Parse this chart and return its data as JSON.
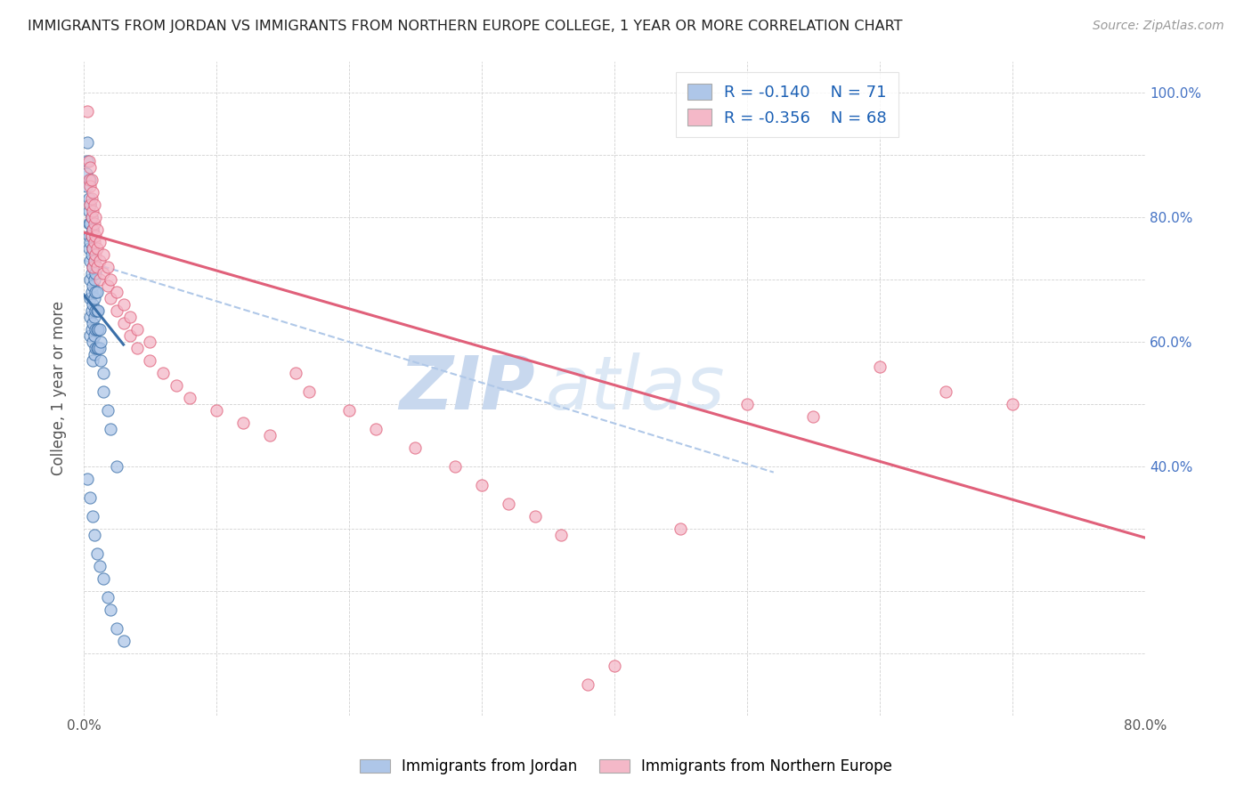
{
  "title": "IMMIGRANTS FROM JORDAN VS IMMIGRANTS FROM NORTHERN EUROPE COLLEGE, 1 YEAR OR MORE CORRELATION CHART",
  "source": "Source: ZipAtlas.com",
  "ylabel": "College, 1 year or more",
  "xlim": [
    0.0,
    0.8
  ],
  "ylim": [
    0.0,
    1.05
  ],
  "jordan_color": "#aec6e8",
  "jordan_line_color": "#3a6fa8",
  "northern_europe_color": "#f4b8c8",
  "northern_europe_line_color": "#e0607a",
  "dashed_line_color": "#b0c8e8",
  "watermark_color": "#dce8f5",
  "legend_r1": "-0.140",
  "legend_n1": "71",
  "legend_r2": "-0.356",
  "legend_n2": "68",
  "jordan_scatter_x": [
    0.002,
    0.002,
    0.003,
    0.003,
    0.004,
    0.004,
    0.004,
    0.004,
    0.004,
    0.005,
    0.005,
    0.005,
    0.005,
    0.005,
    0.005,
    0.005,
    0.005,
    0.005,
    0.006,
    0.006,
    0.006,
    0.006,
    0.006,
    0.006,
    0.006,
    0.007,
    0.007,
    0.007,
    0.007,
    0.007,
    0.007,
    0.007,
    0.007,
    0.008,
    0.008,
    0.008,
    0.008,
    0.008,
    0.008,
    0.009,
    0.009,
    0.009,
    0.009,
    0.009,
    0.01,
    0.01,
    0.01,
    0.01,
    0.011,
    0.011,
    0.011,
    0.012,
    0.012,
    0.013,
    0.013,
    0.015,
    0.015,
    0.018,
    0.02,
    0.025,
    0.003,
    0.005,
    0.007,
    0.008,
    0.01,
    0.012,
    0.015,
    0.018,
    0.02,
    0.025,
    0.03
  ],
  "jordan_scatter_y": [
    0.87,
    0.85,
    0.92,
    0.89,
    0.83,
    0.81,
    0.79,
    0.77,
    0.75,
    0.86,
    0.82,
    0.79,
    0.76,
    0.73,
    0.7,
    0.67,
    0.64,
    0.61,
    0.8,
    0.77,
    0.74,
    0.71,
    0.68,
    0.65,
    0.62,
    0.78,
    0.75,
    0.72,
    0.69,
    0.66,
    0.63,
    0.6,
    0.57,
    0.73,
    0.7,
    0.67,
    0.64,
    0.61,
    0.58,
    0.71,
    0.68,
    0.65,
    0.62,
    0.59,
    0.68,
    0.65,
    0.62,
    0.59,
    0.65,
    0.62,
    0.59,
    0.62,
    0.59,
    0.6,
    0.57,
    0.55,
    0.52,
    0.49,
    0.46,
    0.4,
    0.38,
    0.35,
    0.32,
    0.29,
    0.26,
    0.24,
    0.22,
    0.19,
    0.17,
    0.14,
    0.12
  ],
  "northern_europe_scatter_x": [
    0.003,
    0.004,
    0.004,
    0.005,
    0.005,
    0.005,
    0.006,
    0.006,
    0.006,
    0.006,
    0.007,
    0.007,
    0.007,
    0.007,
    0.007,
    0.008,
    0.008,
    0.008,
    0.008,
    0.009,
    0.009,
    0.009,
    0.01,
    0.01,
    0.01,
    0.012,
    0.012,
    0.012,
    0.015,
    0.015,
    0.018,
    0.018,
    0.02,
    0.02,
    0.025,
    0.025,
    0.03,
    0.03,
    0.035,
    0.035,
    0.04,
    0.04,
    0.05,
    0.05,
    0.06,
    0.07,
    0.08,
    0.1,
    0.12,
    0.14,
    0.16,
    0.17,
    0.2,
    0.22,
    0.25,
    0.28,
    0.3,
    0.32,
    0.34,
    0.36,
    0.38,
    0.4,
    0.45,
    0.5,
    0.55,
    0.6,
    0.65,
    0.7
  ],
  "northern_europe_scatter_y": [
    0.97,
    0.89,
    0.86,
    0.88,
    0.85,
    0.82,
    0.86,
    0.83,
    0.8,
    0.77,
    0.84,
    0.81,
    0.78,
    0.75,
    0.72,
    0.82,
    0.79,
    0.76,
    0.73,
    0.8,
    0.77,
    0.74,
    0.78,
    0.75,
    0.72,
    0.76,
    0.73,
    0.7,
    0.74,
    0.71,
    0.72,
    0.69,
    0.7,
    0.67,
    0.68,
    0.65,
    0.66,
    0.63,
    0.64,
    0.61,
    0.62,
    0.59,
    0.6,
    0.57,
    0.55,
    0.53,
    0.51,
    0.49,
    0.47,
    0.45,
    0.55,
    0.52,
    0.49,
    0.46,
    0.43,
    0.4,
    0.37,
    0.34,
    0.32,
    0.29,
    0.05,
    0.08,
    0.3,
    0.5,
    0.48,
    0.56,
    0.52,
    0.5
  ],
  "jordan_trend_x": [
    0.0,
    0.03
  ],
  "jordan_trend_y": [
    0.675,
    0.595
  ],
  "northern_europe_trend_x": [
    0.0,
    0.8
  ],
  "northern_europe_trend_y": [
    0.775,
    0.285
  ],
  "dashed_trend_x": [
    0.0,
    0.52
  ],
  "dashed_trend_y": [
    0.73,
    0.39
  ]
}
